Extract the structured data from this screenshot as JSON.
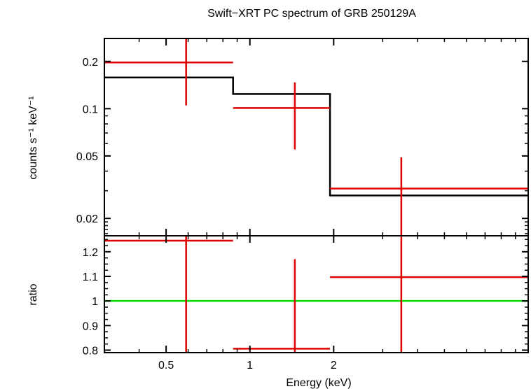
{
  "chart_data": {
    "type": "scatter",
    "title": "Swift−XRT PC spectrum of GRB 250129A",
    "xlabel": "Energy (keV)",
    "x_scale": "log",
    "xlim": [
      0.3,
      10
    ],
    "x_ticks": [
      {
        "value": 0.5,
        "label": "0.5"
      },
      {
        "value": 1,
        "label": "1"
      },
      {
        "value": 2,
        "label": "2"
      }
    ],
    "top_panel": {
      "ylabel": "counts s⁻¹ keV⁻¹",
      "y_scale": "log",
      "ylim": [
        0.0155,
        0.28
      ],
      "y_ticks": [
        {
          "value": 0.2,
          "label": "0.2"
        },
        {
          "value": 0.1,
          "label": "0.1"
        },
        {
          "value": 0.05,
          "label": "0.05"
        },
        {
          "value": 0.02,
          "label": "0.02"
        }
      ],
      "data_color": "#e00000",
      "model_color": "#000000",
      "data": [
        {
          "x_lo": 0.3,
          "x": 0.59,
          "x_hi": 0.87,
          "y": 0.197,
          "y_lo": 0.105,
          "y_hi": 0.285
        },
        {
          "x_lo": 0.87,
          "x": 1.45,
          "x_hi": 1.94,
          "y": 0.101,
          "y_lo": 0.055,
          "y_hi": 0.147
        },
        {
          "x_lo": 1.94,
          "x": 3.5,
          "x_hi": 10,
          "y": 0.031,
          "y_lo": 0.0155,
          "y_hi": 0.049
        }
      ],
      "model": [
        {
          "x_lo": 0.3,
          "x_hi": 0.87,
          "y": 0.158
        },
        {
          "x_lo": 0.87,
          "x_hi": 1.94,
          "y": 0.124
        },
        {
          "x_lo": 1.94,
          "x_hi": 10,
          "y": 0.028
        }
      ]
    },
    "bottom_panel": {
      "ylabel": "ratio",
      "y_scale": "linear",
      "ylim": [
        0.79,
        1.265
      ],
      "y_ticks": [
        {
          "value": 1.2,
          "label": "1.2"
        },
        {
          "value": 1.1,
          "label": "1.1"
        },
        {
          "value": 1,
          "label": "1"
        },
        {
          "value": 0.9,
          "label": "0.9"
        },
        {
          "value": 0.8,
          "label": "0.8"
        }
      ],
      "data_color": "#e00000",
      "reference_color": "#00e000",
      "reference_value": 1,
      "data": [
        {
          "x_lo": 0.3,
          "x": 0.59,
          "x_hi": 0.87,
          "y": 1.245,
          "y_lo": 0.79,
          "y_hi": 1.265
        },
        {
          "x_lo": 0.87,
          "x": 1.45,
          "x_hi": 1.94,
          "y": 0.806,
          "y_lo": 0.79,
          "y_hi": 1.17
        },
        {
          "x_lo": 1.94,
          "x": 3.5,
          "x_hi": 10,
          "y": 1.097,
          "y_lo": 0.79,
          "y_hi": 1.265
        }
      ]
    }
  }
}
